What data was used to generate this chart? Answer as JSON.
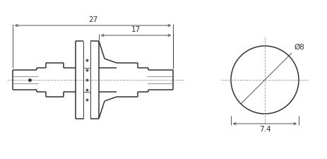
{
  "bg_color": "#ffffff",
  "line_color": "#333333",
  "dim_color": "#333333",
  "center_color": "#999999",
  "thin_lw": 0.7,
  "medium_lw": 1.1,
  "dim_lw": 0.6,
  "label_27": "27",
  "label_17": "17",
  "label_dia8": "Ø8",
  "label_74": "7.4",
  "font_size": 7.5
}
